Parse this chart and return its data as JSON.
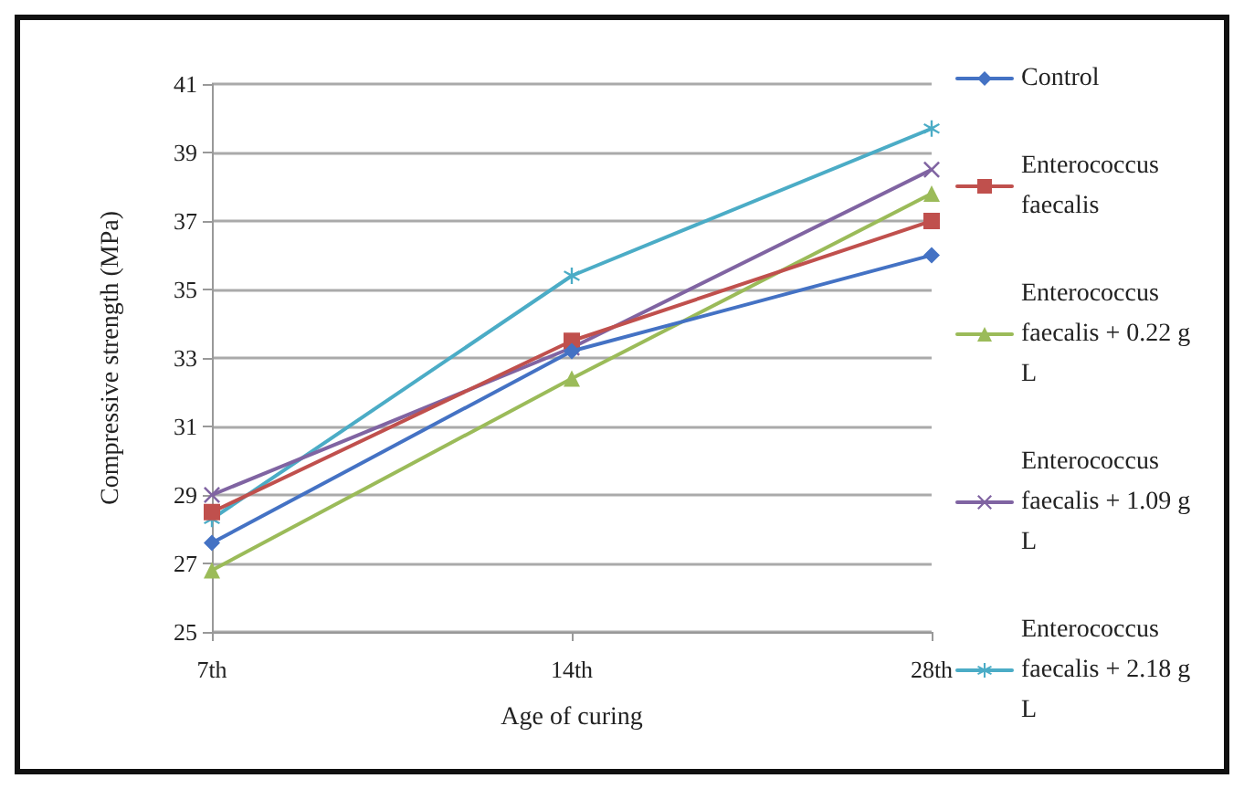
{
  "chart_data": {
    "type": "line",
    "xlabel": "Age of curing",
    "ylabel": "Compressive strength (MPa)",
    "categories": [
      "7th",
      "14th",
      "28th"
    ],
    "ylim": [
      25,
      41
    ],
    "yticks": [
      25,
      27,
      29,
      31,
      33,
      35,
      37,
      39,
      41
    ],
    "grid": "y",
    "legend": "right",
    "series": [
      {
        "name": "Control",
        "color": "#4472c4",
        "marker": "diamond",
        "values": [
          27.6,
          33.2,
          36.0
        ]
      },
      {
        "name": "Enterococcus faecalis",
        "color": "#c0504d",
        "marker": "square",
        "values": [
          28.5,
          33.5,
          37.0
        ]
      },
      {
        "name": "Enterococcus faecalis + 0.22 g L",
        "color": "#9bbb59",
        "marker": "triangle",
        "values": [
          26.8,
          32.4,
          37.8
        ]
      },
      {
        "name": "Enterococcus faecalis + 1.09 g L",
        "color": "#8064a2",
        "marker": "cross",
        "values": [
          29.0,
          33.3,
          38.5
        ]
      },
      {
        "name": "Enterococcus faecalis + 2.18 g L",
        "color": "#4bacc6",
        "marker": "star",
        "values": [
          28.3,
          35.4,
          39.7
        ]
      }
    ]
  }
}
